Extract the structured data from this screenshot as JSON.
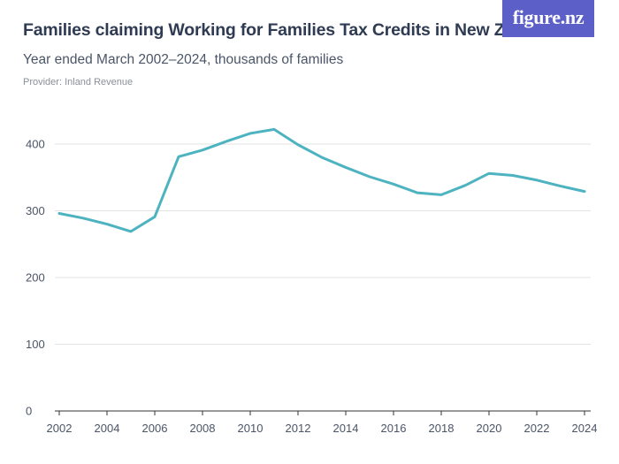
{
  "header": {
    "title": "Families claiming Working for Families Tax Credits in New Zealand",
    "subtitle": "Year ended March 2002–2024, thousands of families",
    "provider": "Provider: Inland Revenue",
    "logo_text": "figure.nz"
  },
  "colors": {
    "line": "#4db3c0",
    "grid": "#e3e3e3",
    "axis": "#333333",
    "logo_bg": "#5b5fc7"
  },
  "chart_data": {
    "type": "line",
    "title": "Families claiming Working for Families Tax Credits in New Zealand",
    "subtitle": "Year ended March 2002–2024, thousands of families",
    "xlabel": "",
    "ylabel": "",
    "grid": true,
    "ylim": [
      0,
      400
    ],
    "y_ticks": [
      0,
      100,
      200,
      300,
      400
    ],
    "x_ticks": [
      2002,
      2004,
      2006,
      2008,
      2010,
      2012,
      2014,
      2016,
      2018,
      2020,
      2022,
      2024
    ],
    "x": [
      2002,
      2003,
      2004,
      2005,
      2006,
      2007,
      2008,
      2009,
      2010,
      2011,
      2012,
      2013,
      2014,
      2015,
      2016,
      2017,
      2018,
      2019,
      2020,
      2021,
      2022,
      2023,
      2024
    ],
    "values": [
      296,
      289,
      280,
      269,
      291,
      381,
      391,
      404,
      416,
      422,
      399,
      380,
      365,
      351,
      340,
      327,
      324,
      338,
      356,
      353,
      346,
      337,
      329
    ]
  }
}
